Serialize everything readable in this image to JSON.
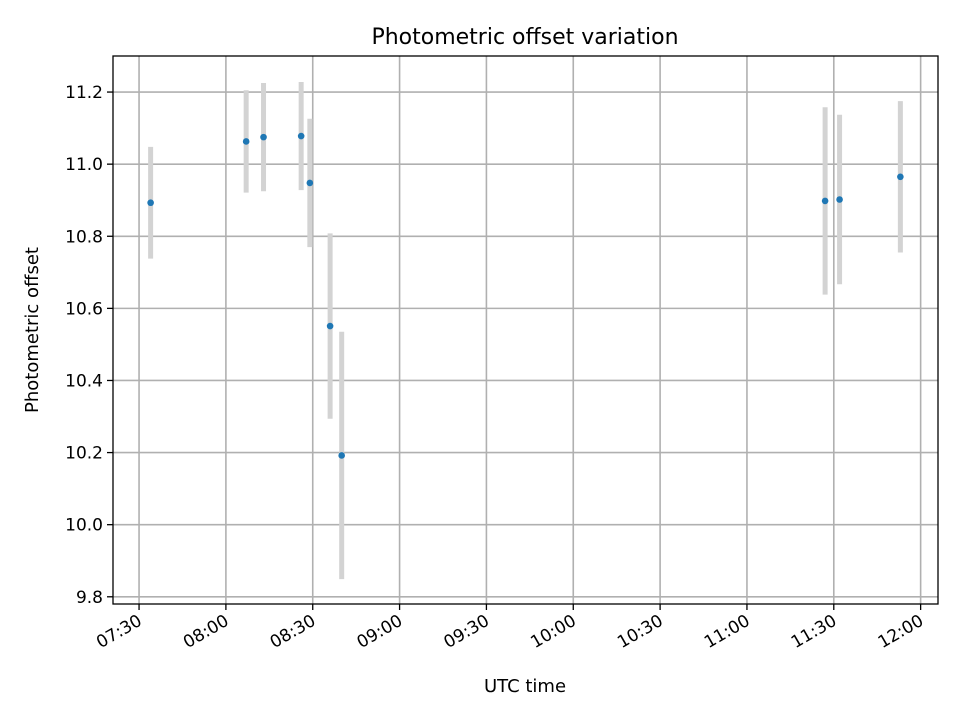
{
  "chart_data": {
    "type": "scatter",
    "title": "Photometric offset variation",
    "xlabel": "UTC time",
    "ylabel": "Photometric offset",
    "xlim": [
      "07:21",
      "12:06"
    ],
    "ylim": [
      9.78,
      11.3
    ],
    "grid": true,
    "legend": "none",
    "x_ticks": [
      "07:30",
      "08:00",
      "08:30",
      "09:00",
      "09:30",
      "10:00",
      "10:30",
      "11:00",
      "11:30",
      "12:00"
    ],
    "y_ticks": [
      "9.8",
      "10.0",
      "10.2",
      "10.4",
      "10.6",
      "10.8",
      "11.0",
      "11.2"
    ],
    "series": [
      {
        "marker_color": "#1f77b4",
        "errorbar_color": "#d3d3d3",
        "points": [
          {
            "time": "07:34",
            "y": 10.893,
            "yerr": 0.155
          },
          {
            "time": "08:07",
            "y": 11.063,
            "yerr": 0.142
          },
          {
            "time": "08:13",
            "y": 11.075,
            "yerr": 0.15
          },
          {
            "time": "08:26",
            "y": 11.078,
            "yerr": 0.15
          },
          {
            "time": "08:29",
            "y": 10.948,
            "yerr": 0.178
          },
          {
            "time": "08:36",
            "y": 10.551,
            "yerr": 0.257
          },
          {
            "time": "08:40",
            "y": 10.192,
            "yerr": 0.343
          },
          {
            "time": "11:27",
            "y": 10.898,
            "yerr": 0.26
          },
          {
            "time": "11:32",
            "y": 10.902,
            "yerr": 0.235
          },
          {
            "time": "11:53",
            "y": 10.965,
            "yerr": 0.21
          }
        ]
      }
    ]
  }
}
